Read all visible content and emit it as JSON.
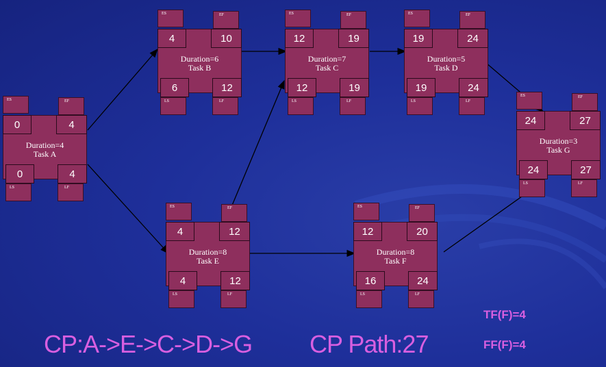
{
  "tasks": [
    {
      "id": "A",
      "duration_label": "Duration=4",
      "task_label": "Task A",
      "es": "0",
      "ef": "4",
      "ls": "0",
      "lf": "4"
    },
    {
      "id": "B",
      "duration_label": "Duration=6",
      "task_label": "Task B",
      "es": "4",
      "ef": "10",
      "ls": "6",
      "lf": "12"
    },
    {
      "id": "C",
      "duration_label": "Duration=7",
      "task_label": "Task C",
      "es": "12",
      "ef": "19",
      "ls": "12",
      "lf": "19"
    },
    {
      "id": "D",
      "duration_label": "Duration=5",
      "task_label": "Task D",
      "es": "19",
      "ef": "24",
      "ls": "19",
      "lf": "24"
    },
    {
      "id": "E",
      "duration_label": "Duration=8",
      "task_label": "Task E",
      "es": "4",
      "ef": "12",
      "ls": "4",
      "lf": "12"
    },
    {
      "id": "F",
      "duration_label": "Duration=8",
      "task_label": "Task F",
      "es": "12",
      "ef": "20",
      "ls": "16",
      "lf": "24"
    },
    {
      "id": "G",
      "duration_label": "Duration=3",
      "task_label": "Task G",
      "es": "24",
      "ef": "27",
      "ls": "24",
      "lf": "27"
    }
  ],
  "legend": {
    "es": "ES",
    "ef": "EF",
    "ls": "LS",
    "lf": "LF"
  },
  "footer": {
    "cp": "CP:A->E->C->D->G",
    "cp_path": "CP Path:27",
    "tf": "TF(F)=4",
    "ff": "FF(F)=4"
  },
  "colors": {
    "background": "#1e2f9a",
    "node": "#8e2f5d",
    "accent_text": "#d85fe0",
    "edge": "#000000"
  }
}
